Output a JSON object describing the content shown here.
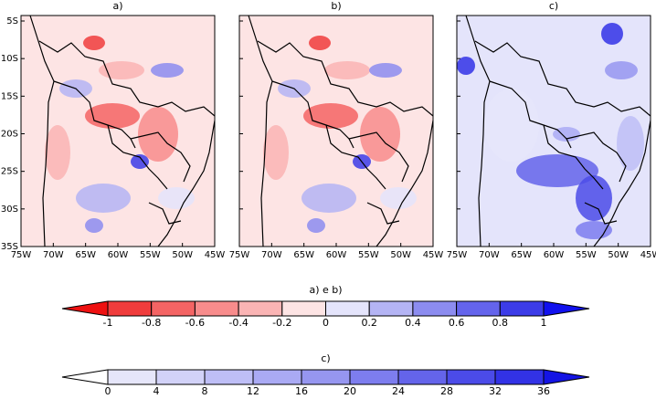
{
  "panels": [
    {
      "label": "a)"
    },
    {
      "label": "b)"
    },
    {
      "label": "c)"
    }
  ],
  "lat_labels": [
    "5S",
    "10S",
    "15S",
    "20S",
    "25S",
    "30S",
    "35S"
  ],
  "lon_labels": [
    "75W",
    "70W",
    "65W",
    "60W",
    "55W",
    "50W",
    "45W"
  ],
  "colorbars": [
    {
      "title": "a) e b)",
      "ticks": [
        -1,
        -0.8,
        -0.6,
        -0.4,
        -0.2,
        0,
        0.2,
        0.4,
        0.6,
        0.8,
        1
      ],
      "colors": [
        "#ee1111",
        "#f03c3c",
        "#f46464",
        "#f88c8c",
        "#fab4b4",
        "#fde4e4",
        "#e4e4fb",
        "#b4b4f4",
        "#8c8cf0",
        "#6464ec",
        "#3c3ce8",
        "#1111ee"
      ]
    },
    {
      "title": "c)",
      "ticks": [
        0,
        4,
        8,
        12,
        16,
        20,
        24,
        28,
        32,
        36
      ],
      "colors": [
        "#ffffff",
        "#e6e6fa",
        "#d2d2f8",
        "#bebef6",
        "#aaaaf4",
        "#9696f0",
        "#7d7dee",
        "#6464ea",
        "#4b4be8",
        "#3232e6",
        "#1414e4"
      ]
    }
  ]
}
